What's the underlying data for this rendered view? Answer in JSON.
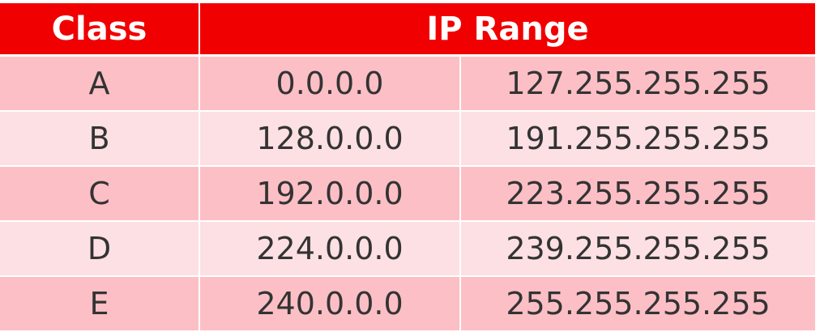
{
  "table": {
    "header": {
      "class_label": "Class",
      "range_label": "IP Range"
    },
    "rows": [
      {
        "class": "A",
        "start": "0.0.0.0",
        "end": "127.255.255.255"
      },
      {
        "class": "B",
        "start": "128.0.0.0",
        "end": "191.255.255.255"
      },
      {
        "class": "C",
        "start": "192.0.0.0",
        "end": "223.255.255.255"
      },
      {
        "class": "D",
        "start": "224.0.0.0",
        "end": "239.255.255.255"
      },
      {
        "class": "E",
        "start": "240.0.0.0",
        "end": "255.255.255.255"
      }
    ]
  },
  "colors": {
    "header_bg": "#f00000",
    "row_dark": "#fcbfc6",
    "row_light": "#fde0e3",
    "text": "#333333"
  }
}
